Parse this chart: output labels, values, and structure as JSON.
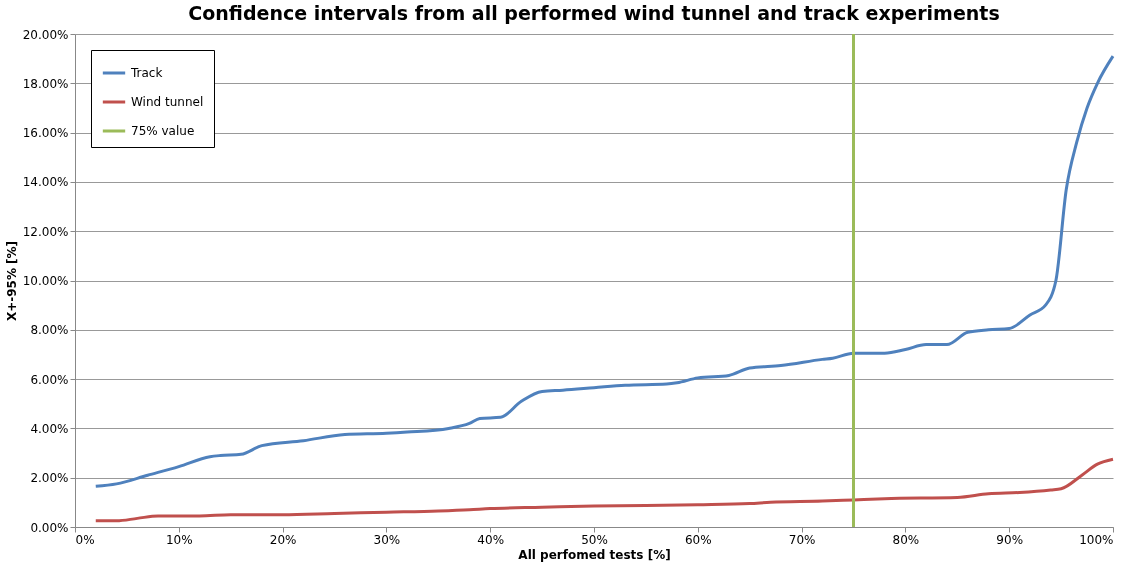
{
  "chart_data": {
    "type": "line",
    "title": "Confidence intervals from all performed wind tunnel and track experiments",
    "xlabel": "All perfomed tests [%]",
    "ylabel": "X+-95% [%]",
    "xlim": [
      0,
      100
    ],
    "ylim": [
      0,
      20
    ],
    "xticks": [
      {
        "value": 0,
        "label": "0%"
      },
      {
        "value": 10,
        "label": "10%"
      },
      {
        "value": 20,
        "label": "20%"
      },
      {
        "value": 30,
        "label": "30%"
      },
      {
        "value": 40,
        "label": "40%"
      },
      {
        "value": 50,
        "label": "50%"
      },
      {
        "value": 60,
        "label": "60%"
      },
      {
        "value": 70,
        "label": "70%"
      },
      {
        "value": 80,
        "label": "80%"
      },
      {
        "value": 90,
        "label": "90%"
      },
      {
        "value": 100,
        "label": "100%"
      }
    ],
    "yticks": [
      {
        "value": 0,
        "label": "0.00%"
      },
      {
        "value": 2,
        "label": "2.00%"
      },
      {
        "value": 4,
        "label": "4.00%"
      },
      {
        "value": 6,
        "label": "6.00%"
      },
      {
        "value": 8,
        "label": "8.00%"
      },
      {
        "value": 10,
        "label": "10.00%"
      },
      {
        "value": 12,
        "label": "12.00%"
      },
      {
        "value": 14,
        "label": "14.00%"
      },
      {
        "value": 16,
        "label": "16.00%"
      },
      {
        "value": 18,
        "label": "18.00%"
      },
      {
        "value": 20,
        "label": "20.00%"
      }
    ],
    "grid": "y",
    "legend": "top left",
    "marker": "none",
    "line_style": "solid",
    "series": [
      {
        "name": "Track",
        "color": "#4f81bd",
        "x": [
          2,
          4,
          7,
          10,
          13,
          14,
          16,
          18,
          22,
          26,
          30,
          32,
          36,
          38,
          39,
          41,
          43,
          45,
          47,
          50,
          53,
          57,
          58,
          60,
          63,
          65,
          68,
          72,
          73,
          75,
          78,
          80,
          82,
          84,
          86,
          88,
          90,
          92,
          93.5,
          94.5,
          95.5,
          96.5,
          97.5,
          98.5,
          100
        ],
        "values": [
          1.65,
          1.75,
          2.1,
          2.45,
          2.85,
          2.9,
          2.95,
          3.3,
          3.5,
          3.75,
          3.8,
          3.85,
          4.0,
          4.2,
          4.4,
          4.45,
          5.1,
          5.5,
          5.55,
          5.65,
          5.75,
          5.8,
          5.85,
          6.05,
          6.15,
          6.45,
          6.55,
          6.8,
          6.85,
          7.05,
          7.05,
          7.2,
          7.4,
          7.4,
          7.9,
          8.0,
          8.05,
          8.6,
          9.0,
          10.0,
          13.7,
          15.6,
          17.0,
          18.0,
          19.1
        ]
      },
      {
        "name": "Wind tunnel",
        "color": "#c0504d",
        "x": [
          2,
          4,
          6,
          8,
          12,
          15,
          20,
          25,
          30,
          35,
          38,
          40,
          45,
          50,
          60,
          65,
          67,
          72,
          75,
          78,
          85,
          88,
          91,
          94,
          95,
          97,
          98.5,
          100
        ],
        "values": [
          0.25,
          0.25,
          0.35,
          0.45,
          0.45,
          0.5,
          0.5,
          0.55,
          0.6,
          0.65,
          0.7,
          0.75,
          0.8,
          0.85,
          0.9,
          0.95,
          1.0,
          1.05,
          1.1,
          1.15,
          1.2,
          1.35,
          1.4,
          1.5,
          1.55,
          2.1,
          2.55,
          2.75
        ]
      },
      {
        "name": "75% value",
        "color": "#9bbb59",
        "x": [
          75,
          75
        ],
        "values": [
          0,
          20
        ]
      }
    ]
  }
}
